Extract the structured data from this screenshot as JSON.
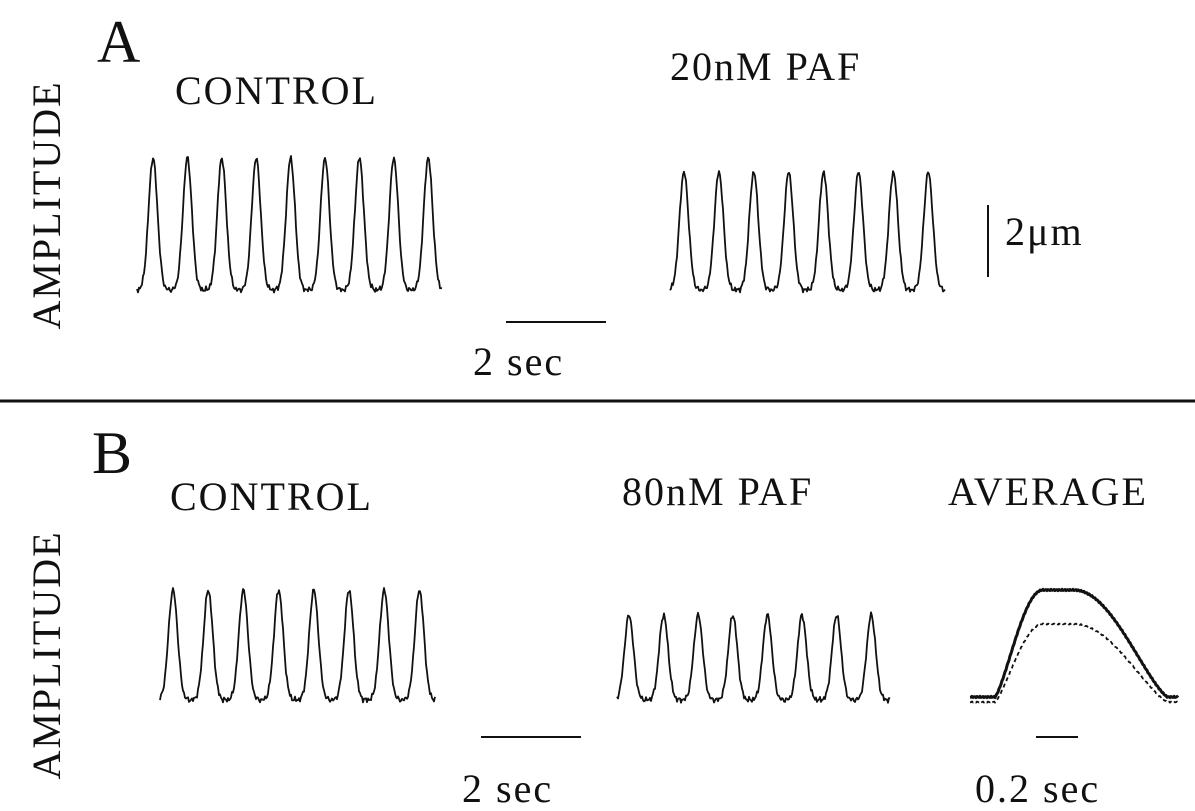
{
  "panels": [
    {
      "letter": "A",
      "axis_label": "AMPLITUDE",
      "conditions": [
        "CONTROL",
        "20nM PAF"
      ],
      "amplitude_scale": "2μm",
      "time_scale": "2 sec"
    },
    {
      "letter": "B",
      "axis_label": "AMPLITUDE",
      "conditions": [
        "CONTROL",
        "80nM PAF",
        "AVERAGE"
      ],
      "time_scale": "2 sec",
      "average_time_scale": "0.2 sec"
    }
  ]
}
